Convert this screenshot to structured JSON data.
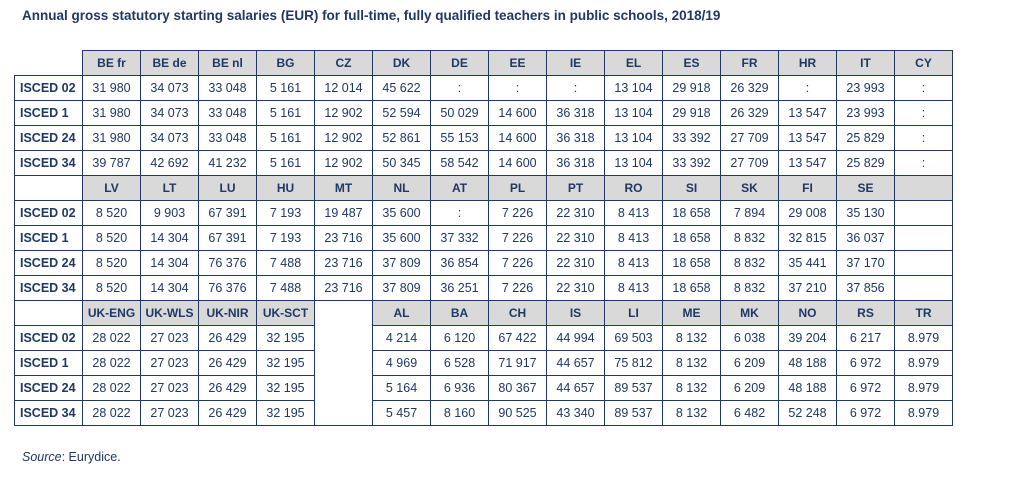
{
  "source": {
    "label": "Source",
    "rest": ": Eurydice."
  },
  "colors": {
    "text": "#1f3864",
    "title": "#1f3864",
    "header_bg": "#d9d9d9",
    "border": "#1f3864"
  },
  "chart_data": {
    "type": "table",
    "title": "Annual gross statutory starting salaries (EUR) for full-time, fully qualified teachers in public schools, 2018/19",
    "source": "Source: Eurydice.",
    "row_labels": [
      "ISCED 02",
      "ISCED 1",
      "ISCED 24",
      "ISCED 34"
    ],
    "blocks": [
      {
        "headers": [
          "BE fr",
          "BE de",
          "BE nl",
          "BG",
          "CZ",
          "DK",
          "DE",
          "EE",
          "IE",
          "EL",
          "ES",
          "FR",
          "HR",
          "IT",
          "CY"
        ],
        "rows": [
          [
            "31 980",
            "34 073",
            "33 048",
            "5 161",
            "12 014",
            "45 622",
            ":",
            ":",
            ":",
            "13 104",
            "29 918",
            "26 329",
            ":",
            "23 993",
            ":"
          ],
          [
            "31 980",
            "34 073",
            "33 048",
            "5 161",
            "12 902",
            "52 594",
            "50 029",
            "14 600",
            "36 318",
            "13 104",
            "29 918",
            "26 329",
            "13 547",
            "23 993",
            ":"
          ],
          [
            "31 980",
            "34 073",
            "33 048",
            "5 161",
            "12 902",
            "52 861",
            "55 153",
            "14 600",
            "36 318",
            "13 104",
            "33 392",
            "27 709",
            "13 547",
            "25 829",
            ":"
          ],
          [
            "39 787",
            "42 692",
            "41 232",
            "5 161",
            "12 902",
            "50 345",
            "58 542",
            "14 600",
            "36 318",
            "13 104",
            "33 392",
            "27 709",
            "13 547",
            "25 829",
            ":"
          ]
        ]
      },
      {
        "headers": [
          "LV",
          "LT",
          "LU",
          "HU",
          "MT",
          "NL",
          "AT",
          "PL",
          "PT",
          "RO",
          "SI",
          "SK",
          "FI",
          "SE",
          ""
        ],
        "rows": [
          [
            "8 520",
            "9 903",
            "67 391",
            "7 193",
            "19 487",
            "35 600",
            ":",
            "7 226",
            "22 310",
            "8 413",
            "18 658",
            "7 894",
            "29 008",
            "35 130",
            ""
          ],
          [
            "8 520",
            "14 304",
            "67 391",
            "7 193",
            "23 716",
            "35 600",
            "37 332",
            "7 226",
            "22 310",
            "8 413",
            "18 658",
            "8 832",
            "32 815",
            "36 037",
            ""
          ],
          [
            "8 520",
            "14 304",
            "76 376",
            "7 488",
            "23 716",
            "37 809",
            "36 854",
            "7 226",
            "22 310",
            "8 413",
            "18 658",
            "8 832",
            "35 441",
            "37 170",
            ""
          ],
          [
            "8 520",
            "14 304",
            "76 376",
            "7 488",
            "23 716",
            "37 809",
            "36 251",
            "7 226",
            "22 310",
            "8 413",
            "18 658",
            "8 832",
            "37 210",
            "37 856",
            ""
          ]
        ]
      },
      {
        "blank_col": 4,
        "headers": [
          "UK-ENG",
          "UK-WLS",
          "UK-NIR",
          "UK-SCT",
          "",
          "AL",
          "BA",
          "CH",
          "IS",
          "LI",
          "ME",
          "MK",
          "NO",
          "RS",
          "TR"
        ],
        "rows": [
          [
            "28 022",
            "27 023",
            "26 429",
            "32 195",
            "",
            "4 214",
            "6 120",
            "67 422",
            "44 994",
            "69 503",
            "8 132",
            "6 038",
            "39 204",
            "6 217",
            "8.979"
          ],
          [
            "28 022",
            "27 023",
            "26 429",
            "32 195",
            "",
            "4 969",
            "6 528",
            "71 917",
            "44 657",
            "75 812",
            "8 132",
            "6 209",
            "48 188",
            "6 972",
            "8.979"
          ],
          [
            "28 022",
            "27 023",
            "26 429",
            "32 195",
            "",
            "5 164",
            "6 936",
            "80 367",
            "44 657",
            "89 537",
            "8 132",
            "6 209",
            "48 188",
            "6 972",
            "8.979"
          ],
          [
            "28 022",
            "27 023",
            "26 429",
            "32 195",
            "",
            "5 457",
            "8 160",
            "90 525",
            "43 340",
            "89 537",
            "8 132",
            "6 482",
            "52 248",
            "6 972",
            "8.979"
          ]
        ]
      }
    ]
  }
}
